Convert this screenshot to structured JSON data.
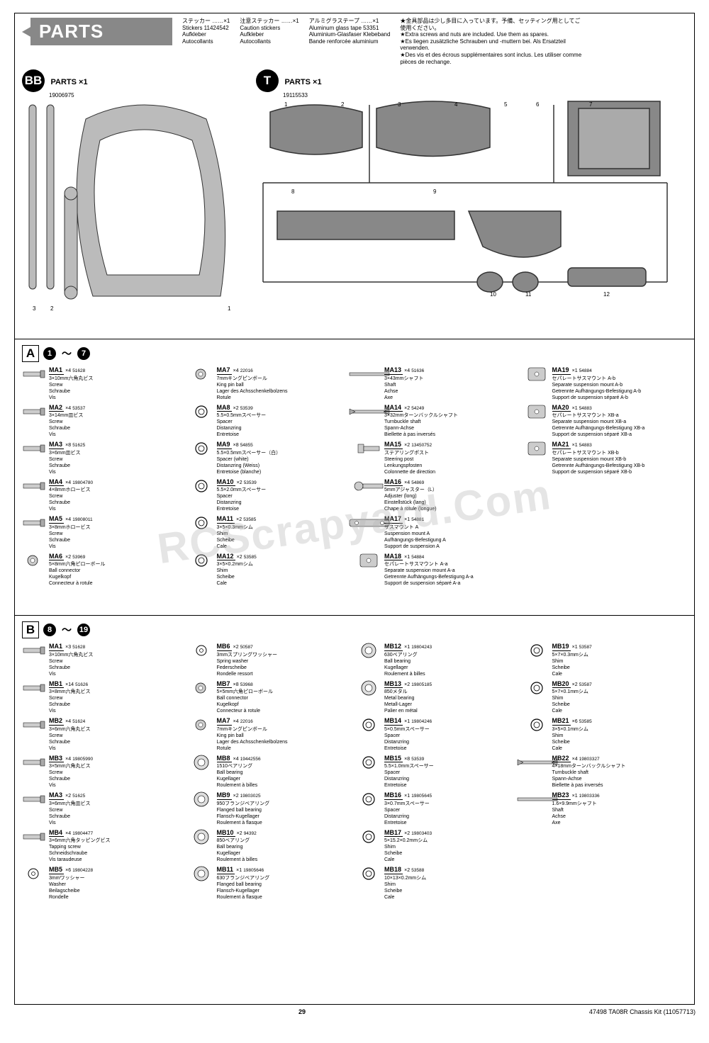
{
  "page": {
    "title": "PARTS",
    "pageNumber": "29",
    "footerRight": "47498   TA08R Chassis Kit   (11057713)"
  },
  "headerCols": [
    {
      "lines": [
        "ステッカー ……×1",
        "Stickers   11424542",
        "Aufkleber",
        "Autocollants"
      ]
    },
    {
      "lines": [
        "注意ステッカー ……×1",
        "Caution stickers",
        "Aufkleber",
        "Autocollants"
      ]
    },
    {
      "lines": [
        "アルミグラステープ ……×1",
        "Aluminum glass tape   53351",
        "Aluminium-Glasfaser Klebeband",
        "Bande renforcée aluminium"
      ]
    }
  ],
  "notes": [
    "★金具部品は少し多目に入っています。予備、セッティング用としてご使用ください。",
    "★Extra screws and nuts are included. Use them as spares.",
    "★Es liegen zusätzliche Schrauben und -muttern bei. Als Ersatzteil verwenden.",
    "★Des vis et des écrous supplémentaires sont inclus. Les utiliser comme pièces de rechange."
  ],
  "sprues": {
    "BB": {
      "label": "BB",
      "sub": "PARTS ×1",
      "num": "19006975"
    },
    "T": {
      "label": "T",
      "sub": "PARTS ×1",
      "num": "19115533"
    }
  },
  "sectionA": {
    "letter": "A",
    "range": [
      "1",
      "7"
    ],
    "items": [
      {
        "code": "MA1",
        "qty": "×4",
        "num": "51628",
        "jp": "3×10mm六角丸ビス",
        "desc": [
          "Screw",
          "Schraube",
          "Vis"
        ]
      },
      {
        "code": "MA2",
        "qty": "×4",
        "num": "53537",
        "jp": "3×14mm皿ビス",
        "desc": [
          "Screw",
          "Schraube",
          "Vis"
        ]
      },
      {
        "code": "MA3",
        "qty": "×8",
        "num": "51625",
        "jp": "3×6mm皿ビス",
        "desc": [
          "Screw",
          "Schraube",
          "Vis"
        ]
      },
      {
        "code": "MA4",
        "qty": "×4",
        "num": "19804780",
        "jp": "4×8mmホロービス",
        "desc": [
          "Screw",
          "Schraube",
          "Vis"
        ]
      },
      {
        "code": "MA5",
        "qty": "×4",
        "num": "19808011",
        "jp": "3×8mmホロービス",
        "desc": [
          "Screw",
          "Schraube",
          "Vis"
        ]
      },
      {
        "code": "MA6",
        "qty": "×2",
        "num": "53969",
        "jp": "5×8mm六角ピローボール",
        "desc": [
          "Ball connector",
          "Kugelkopf",
          "Connecteur à rotule"
        ]
      },
      {
        "code": "MA7",
        "qty": "×4",
        "num": "22016",
        "jp": "7mmキングピンボール",
        "desc": [
          "King pin ball",
          "Lager des Achsschenkelbolzens",
          "Rotule"
        ]
      },
      {
        "code": "MA8",
        "qty": "×2",
        "num": "53539",
        "jp": "5.5×0.5mmスペーサー",
        "desc": [
          "Spacer",
          "Distanzring",
          "Entretoise"
        ]
      },
      {
        "code": "MA9",
        "qty": "×8",
        "num": "54855",
        "jp": "5.5×0.5mmスペーサー（白）",
        "desc": [
          "Spacer (white)",
          "Distanzring (Weiss)",
          "Entretoise (blanche)"
        ]
      },
      {
        "code": "MA10",
        "qty": "×2",
        "num": "53539",
        "jp": "5.5×2.0mmスペーサー",
        "desc": [
          "Spacer",
          "Distanzring",
          "Entretoise"
        ]
      },
      {
        "code": "MA11",
        "qty": "×2",
        "num": "53585",
        "jp": "3×5×0.3mmシム",
        "desc": [
          "Shim",
          "Scheibe",
          "Cale"
        ]
      },
      {
        "code": "MA12",
        "qty": "×2",
        "num": "53585",
        "jp": "3×5×0.2mmシム",
        "desc": [
          "Shim",
          "Scheibe",
          "Cale"
        ]
      },
      {
        "code": "MA13",
        "qty": "×4",
        "num": "51636",
        "jp": "3×43mmシャフト",
        "desc": [
          "Shaft",
          "Achse",
          "Axe"
        ]
      },
      {
        "code": "MA14",
        "qty": "×2",
        "num": "54249",
        "jp": "3×32mmターンバックルシャフト",
        "desc": [
          "Turnbuckle shaft",
          "Spann-Achse",
          "Biellette à pas inversés"
        ]
      },
      {
        "code": "MA15",
        "qty": "×2",
        "num": "13450752",
        "jp": "ステアリングポスト",
        "desc": [
          "Steering post",
          "Lenkungspfosten",
          "Colonnette de direction"
        ]
      },
      {
        "code": "MA16",
        "qty": "×4",
        "num": "54869",
        "jp": "5mmアジャスター（L）",
        "desc": [
          "Adjuster (long)",
          "Einstellstück (lang)",
          "Chape à rotule (longue)"
        ]
      },
      {
        "code": "MA17",
        "qty": "×1",
        "num": "54881",
        "jp": "サスマウント A",
        "desc": [
          "Suspension mount A",
          "Aufhängungs-Befestigung A",
          "Support de suspension A"
        ]
      },
      {
        "code": "MA18",
        "qty": "×1",
        "num": "54884",
        "jp": "セパレートサスマウント A-a",
        "desc": [
          "Separate suspension mount A-a",
          "Getrennte Aufhängungs-Befestigung A-a",
          "Support de suspension séparé A-a"
        ]
      },
      {
        "code": "MA19",
        "qty": "×1",
        "num": "54884",
        "jp": "セパレートサスマウント A-b",
        "desc": [
          "Separate suspension mount A-b",
          "Getrennte Aufhängungs-Befestigung A-b",
          "Support de suspension séparé A-b"
        ]
      },
      {
        "code": "MA20",
        "qty": "×1",
        "num": "54883",
        "jp": "セパレートサスマウント XB-a",
        "desc": [
          "Separate suspension mount XB-a",
          "Getrennte Aufhängungs-Befestigung XB-a",
          "Support de suspension séparé XB-a"
        ]
      },
      {
        "code": "MA21",
        "qty": "×1",
        "num": "54883",
        "jp": "セパレートサスマウント XB-b",
        "desc": [
          "Separate suspension mount XB-b",
          "Getrennte Aufhängungs-Befestigung XB-b",
          "Support de suspension séparé XB-b"
        ]
      }
    ]
  },
  "sectionB": {
    "letter": "B",
    "range": [
      "8",
      "19"
    ],
    "items": [
      {
        "code": "MA1",
        "qty": "×3",
        "num": "51628",
        "jp": "3×10mm六角丸ビス",
        "desc": [
          "Screw",
          "Schraube",
          "Vis"
        ]
      },
      {
        "code": "MB1",
        "qty": "×14",
        "num": "51626",
        "jp": "3×8mm六角丸ビス",
        "desc": [
          "Screw",
          "Schraube",
          "Vis"
        ]
      },
      {
        "code": "MB2",
        "qty": "×4",
        "num": "51624",
        "jp": "3×6mm六角丸ビス",
        "desc": [
          "Screw",
          "Schraube",
          "Vis"
        ]
      },
      {
        "code": "MB3",
        "qty": "×4",
        "num": "19805990",
        "jp": "3×5mm六角丸ビス",
        "desc": [
          "Screw",
          "Schraube",
          "Vis"
        ]
      },
      {
        "code": "MA3",
        "qty": "×2",
        "num": "51625",
        "jp": "3×6mm六角皿ビス",
        "desc": [
          "Screw",
          "Schraube",
          "Vis"
        ]
      },
      {
        "code": "MB4",
        "qty": "×4",
        "num": "19804477",
        "jp": "3×6mm六角タッピングビス",
        "desc": [
          "Tapping screw",
          "Schneidschraube",
          "Vis taraudeuse"
        ]
      },
      {
        "code": "MB5",
        "qty": "×6",
        "num": "19804228",
        "jp": "3mmワッシャー",
        "desc": [
          "Washer",
          "Beilagscheibe",
          "Rondelle"
        ]
      },
      {
        "code": "MB6",
        "qty": "×2",
        "num": "50587",
        "jp": "3mmスプリングワッシャー",
        "desc": [
          "Spring washer",
          "Federscheibe",
          "Rondelle ressort"
        ]
      },
      {
        "code": "MB7",
        "qty": "×8",
        "num": "53968",
        "jp": "5×5mm六角ピローボール",
        "desc": [
          "Ball connector",
          "Kugelkopf",
          "Connecteur à rotule"
        ]
      },
      {
        "code": "MA7",
        "qty": "×4",
        "num": "22016",
        "jp": "7mmキングピンボール",
        "desc": [
          "King pin ball",
          "Lager des Achsschenkelbolzens",
          "Rotule"
        ]
      },
      {
        "code": "MB8",
        "qty": "×4",
        "num": "19442556",
        "jp": "1510ベアリング",
        "desc": [
          "Ball bearing",
          "Kugellager",
          "Roulement à billes"
        ]
      },
      {
        "code": "MB9",
        "qty": "×2",
        "num": "19803025",
        "jp": "950フランジベアリング",
        "desc": [
          "Flanged ball bearing",
          "Flansch-Kugellager",
          "Roulement à flasque"
        ]
      },
      {
        "code": "MB10",
        "qty": "×2",
        "num": "94392",
        "jp": "850ベアリング",
        "desc": [
          "Ball bearing",
          "Kugellager",
          "Roulement à billes"
        ]
      },
      {
        "code": "MB11",
        "qty": "×1",
        "num": "19805646",
        "jp": "630フランジベアリング",
        "desc": [
          "Flanged ball bearing",
          "Flansch-Kugellager",
          "Roulement à flasque"
        ]
      },
      {
        "code": "MB12",
        "qty": "×1",
        "num": "19804243",
        "jp": "630ベアリング",
        "desc": [
          "Ball bearing",
          "Kugellager",
          "Roulement à billes"
        ]
      },
      {
        "code": "MB13",
        "qty": "×2",
        "num": "19805185",
        "jp": "850メタル",
        "desc": [
          "Metal bearing",
          "Metall-Lager",
          "Palier en métal"
        ]
      },
      {
        "code": "MB14",
        "qty": "×1",
        "num": "19804246",
        "jp": "5×0.5mmスペーサー",
        "desc": [
          "Spacer",
          "Distanzring",
          "Entretoise"
        ]
      },
      {
        "code": "MB15",
        "qty": "×8",
        "num": "53539",
        "jp": "5.5×1.0mmスペーサー",
        "desc": [
          "Spacer",
          "Distanzring",
          "Entretoise"
        ]
      },
      {
        "code": "MB16",
        "qty": "×1",
        "num": "19805645",
        "jp": "3×0.7mmスペーサー",
        "desc": [
          "Spacer",
          "Distanzring",
          "Entretoise"
        ]
      },
      {
        "code": "MB17",
        "qty": "×2",
        "num": "19803403",
        "jp": "5×15.2×0.2mmシム",
        "desc": [
          "Shim",
          "Scheibe",
          "Cale"
        ]
      },
      {
        "code": "MB18",
        "qty": "×2",
        "num": "53588",
        "jp": "10×13×0.2mmシム",
        "desc": [
          "Shim",
          "Scheibe",
          "Cale"
        ]
      },
      {
        "code": "MB19",
        "qty": "×1",
        "num": "53587",
        "jp": "5×7×0.3mmシム",
        "desc": [
          "Shim",
          "Scheibe",
          "Cale"
        ]
      },
      {
        "code": "MB20",
        "qty": "×2",
        "num": "53587",
        "jp": "5×7×0.1mmシム",
        "desc": [
          "Shim",
          "Scheibe",
          "Cale"
        ]
      },
      {
        "code": "MB21",
        "qty": "×6",
        "num": "53585",
        "jp": "3×5×0.1mmシム",
        "desc": [
          "Shim",
          "Scheibe",
          "Cale"
        ]
      },
      {
        "code": "MB22",
        "qty": "×4",
        "num": "19803327",
        "jp": "4×18mmターンバックルシャフト",
        "desc": [
          "Turnbuckle shaft",
          "Spann-Achse",
          "Biellette à pas inversés"
        ]
      },
      {
        "code": "MB23",
        "qty": "×1",
        "num": "19803336",
        "jp": "1.6×9.9mmシャフト",
        "desc": [
          "Shaft",
          "Achse",
          "Axe"
        ]
      }
    ]
  }
}
